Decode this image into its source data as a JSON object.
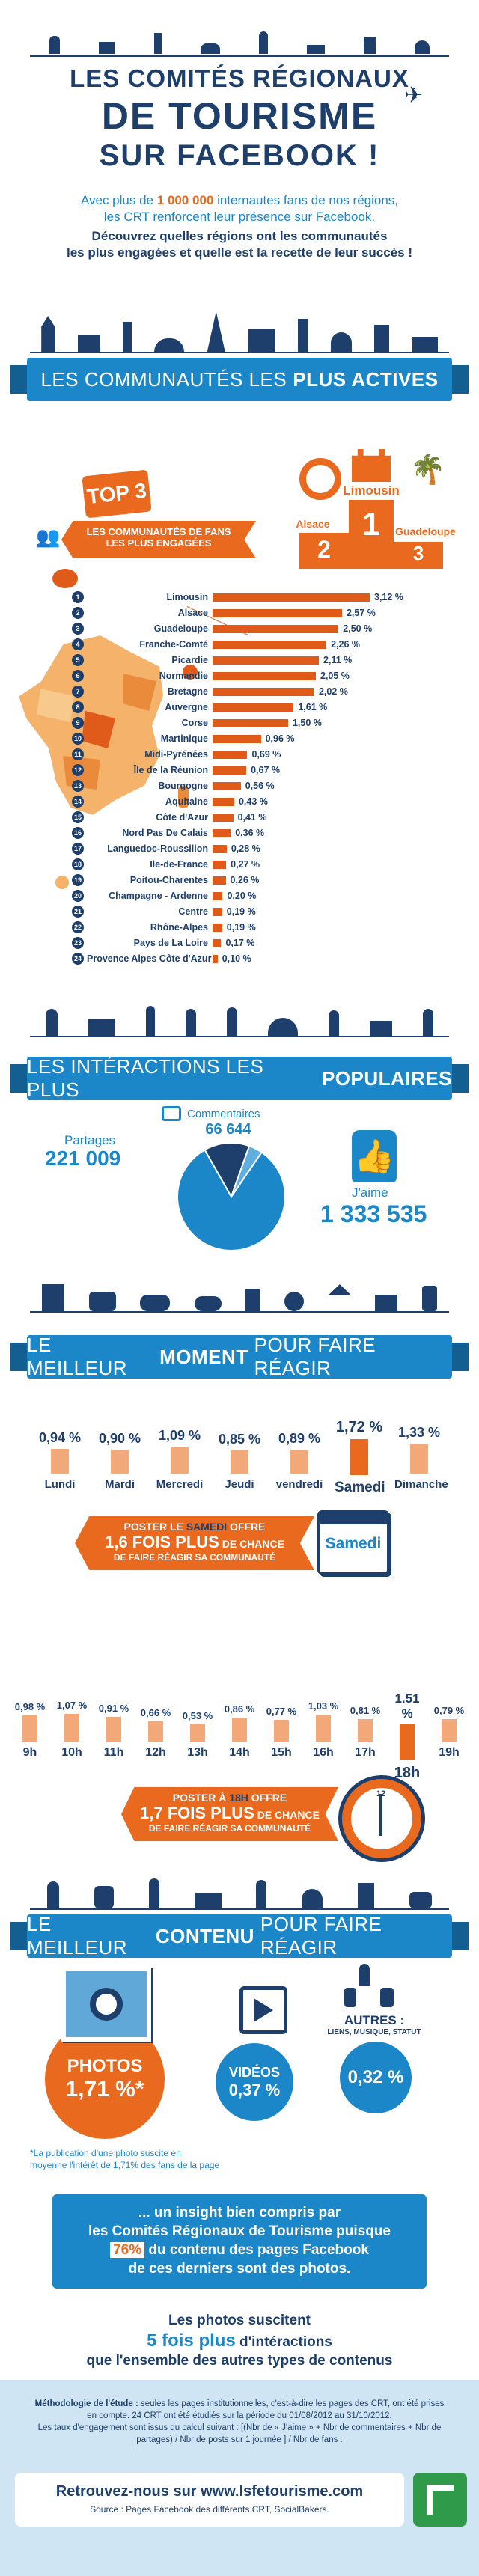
{
  "header": {
    "title_line1": "LES COMITÉS RÉGIONAUX",
    "title_line2": "DE TOURISME",
    "title_line3": "SUR FACEBOOK !",
    "intro_part1": "Avec plus de ",
    "intro_highlight": "1 000 000",
    "intro_part2": " internautes fans de nos régions,",
    "intro_line2": "les CRT renforcent leur présence sur Facebook.",
    "intro_bold1": "Découvrez quelles régions ont les communautés",
    "intro_bold2": "les plus engagées et quelle est la recette de leur succès !"
  },
  "section1": {
    "banner_normal": "LES COMMUNAUTÉS LES",
    "banner_highlight": "PLUS ACTIVES",
    "top3_label": "TOP 3",
    "top3_caption_line1": "LES COMMUNAUTÉS DE FANS",
    "top3_caption_line2": "LES PLUS ENGAGÉES",
    "podium": {
      "first": "Limousin",
      "second": "Alsace",
      "third": "Guadeloupe",
      "first_num": "1",
      "second_num": "2",
      "third_num": "3"
    },
    "ranking": [
      {
        "rank": "1",
        "name": "Limousin",
        "value": "3,12 %",
        "num": 3.12
      },
      {
        "rank": "2",
        "name": "Alsace",
        "value": "2,57 %",
        "num": 2.57
      },
      {
        "rank": "3",
        "name": "Guadeloupe",
        "value": "2,50 %",
        "num": 2.5
      },
      {
        "rank": "4",
        "name": "Franche-Comté",
        "value": "2,26 %",
        "num": 2.26
      },
      {
        "rank": "5",
        "name": "Picardie",
        "value": "2,11 %",
        "num": 2.11
      },
      {
        "rank": "6",
        "name": "Normandie",
        "value": "2,05 %",
        "num": 2.05
      },
      {
        "rank": "7",
        "name": "Bretagne",
        "value": "2,02 %",
        "num": 2.02
      },
      {
        "rank": "8",
        "name": "Auvergne",
        "value": "1,61 %",
        "num": 1.61
      },
      {
        "rank": "9",
        "name": "Corse",
        "value": "1,50 %",
        "num": 1.5
      },
      {
        "rank": "10",
        "name": "Martinique",
        "value": "0,96 %",
        "num": 0.96
      },
      {
        "rank": "11",
        "name": "Midi-Pyrénées",
        "value": "0,69 %",
        "num": 0.69
      },
      {
        "rank": "12",
        "name": "Île de la Réunion",
        "value": "0,67 %",
        "num": 0.67
      },
      {
        "rank": "13",
        "name": "Bourgogne",
        "value": "0,56 %",
        "num": 0.56
      },
      {
        "rank": "14",
        "name": "Aquitaine",
        "value": "0,43 %",
        "num": 0.43
      },
      {
        "rank": "15",
        "name": "Côte d'Azur",
        "value": "0,41 %",
        "num": 0.41
      },
      {
        "rank": "16",
        "name": "Nord Pas De Calais",
        "value": "0,36 %",
        "num": 0.36
      },
      {
        "rank": "17",
        "name": "Languedoc-Roussillon",
        "value": "0,28 %",
        "num": 0.28
      },
      {
        "rank": "18",
        "name": "Ile-de-France",
        "value": "0,27 %",
        "num": 0.27
      },
      {
        "rank": "19",
        "name": "Poitou-Charentes",
        "value": "0,26 %",
        "num": 0.26
      },
      {
        "rank": "20",
        "name": "Champagne - Ardenne",
        "value": "0,20 %",
        "num": 0.2
      },
      {
        "rank": "21",
        "name": "Centre",
        "value": "0,19 %",
        "num": 0.19
      },
      {
        "rank": "22",
        "name": "Rhône-Alpes",
        "value": "0,19 %",
        "num": 0.19
      },
      {
        "rank": "23",
        "name": "Pays de La Loire",
        "value": "0,17 %",
        "num": 0.17
      },
      {
        "rank": "24",
        "name": "Provence Alpes Côte d'Azur",
        "value": "0,10 %",
        "num": 0.1
      }
    ]
  },
  "section2": {
    "banner_normal": "LES INTÉRACTIONS LES PLUS",
    "banner_highlight": "POPULAIRES",
    "shares_label": "Partages",
    "shares_value": "221 009",
    "comments_label": "Commentaires",
    "comments_value": "66 644",
    "likes_label": "J'aime",
    "likes_value": "1 333 535",
    "chart_data": {
      "type": "pie",
      "categories": [
        "J'aime",
        "Partages",
        "Commentaires"
      ],
      "values": [
        1333535,
        221009,
        66644
      ],
      "colors": [
        "#1b87c9",
        "#1e3f6b",
        "#5fb0e0"
      ]
    }
  },
  "section3": {
    "banner_normal": "LE MEILLEUR",
    "banner_highlight": "MOMENT",
    "banner_end": "POUR FAIRE RÉAGIR",
    "days": [
      {
        "label": "Lundi",
        "value": "0,94 %",
        "num": 0.94
      },
      {
        "label": "Mardi",
        "value": "0,90 %",
        "num": 0.9
      },
      {
        "label": "Mercredi",
        "value": "1,09 %",
        "num": 1.09
      },
      {
        "label": "Jeudi",
        "value": "0,85 %",
        "num": 0.85
      },
      {
        "label": "vendredi",
        "value": "0,89 %",
        "num": 0.89
      },
      {
        "label": "Samedi",
        "value": "1,72 %",
        "num": 1.72
      },
      {
        "label": "Dimanche",
        "value": "1,33 %",
        "num": 1.33
      }
    ],
    "saturday_ribbon_line1a": "POSTER LE ",
    "saturday_ribbon_line1b": "SAMEDI",
    "saturday_ribbon_line1c": " OFFRE",
    "saturday_ribbon_line2a": "1,6 FOIS PLUS",
    "saturday_ribbon_line2b": " DE CHANCE",
    "saturday_ribbon_line3": "DE FAIRE RÉAGIR SA COMMUNAUTÉ",
    "calendar_label": "Samedi",
    "hours": [
      {
        "label": "9h",
        "value": "0,98 %",
        "num": 0.98
      },
      {
        "label": "10h",
        "value": "1,07 %",
        "num": 1.07
      },
      {
        "label": "11h",
        "value": "0,91 %",
        "num": 0.91
      },
      {
        "label": "12h",
        "value": "0,66 %",
        "num": 0.66
      },
      {
        "label": "13h",
        "value": "0,53 %",
        "num": 0.53
      },
      {
        "label": "14h",
        "value": "0,86 %",
        "num": 0.86
      },
      {
        "label": "15h",
        "value": "0,77 %",
        "num": 0.77
      },
      {
        "label": "16h",
        "value": "1,03 %",
        "num": 1.03
      },
      {
        "label": "17h",
        "value": "0,81 %",
        "num": 0.81
      },
      {
        "label": "18h",
        "value": "1.51 %",
        "num": 1.51
      },
      {
        "label": "19h",
        "value": "0,79 %",
        "num": 0.79
      }
    ],
    "hour_ribbon_line1a": "POSTER À ",
    "hour_ribbon_line1b": "18H",
    "hour_ribbon_line1c": " OFFRE",
    "hour_ribbon_line2a": "1,7 FOIS PLUS",
    "hour_ribbon_line2b": " DE CHANCE",
    "hour_ribbon_line3": "DE FAIRE RÉAGIR SA COMMUNAUTÉ"
  },
  "section4": {
    "banner_normal": "LE MEILLEUR",
    "banner_highlight": "CONTENU",
    "banner_end": "POUR FAIRE RÉAGIR",
    "photos_label": "PHOTOS",
    "photos_value": "1,71 %",
    "photos_asterisk": "*",
    "videos_label": "VIDÉOS",
    "videos_value": "0,37 %",
    "others_label": "AUTRES :",
    "others_sub": "LIENS, MUSIQUE, STATUT",
    "others_value": "0,32 %",
    "footnote_line1": "*La publication d'une photo suscite en",
    "footnote_line2": "moyenne l'intérêt de 1,71% des fans de la page",
    "insight_line1": "... un insight bien compris par",
    "insight_line2": "les Comités Régionaux de Tourisme puisque",
    "insight_pct": "76%",
    "insight_line3": " du contenu des pages Facebook",
    "insight_line4": "de ces derniers sont des photos.",
    "closing_line1": "Les photos suscitent",
    "closing_line2": "5 fois plus",
    "closing_line2b": " d'intéractions",
    "closing_line3": "que l'ensemble des autres types de contenus"
  },
  "footer": {
    "method_bold": "Méthodologie de l'étude :",
    "method_text1": " seules les pages institutionnelles, c'est-à-dire les pages des CRT, ont été prises",
    "method_text2": "en compte. 24 CRT ont été étudiés sur la période du 01/08/2012 au 31/10/2012.",
    "method_text3": "Les taux d'engagement sont issus du calcul suivant : [(Nbr de « J'aime » + Nbr de commentaires + Nbr de",
    "method_text4": "partages) / Nbr de posts sur 1 journée ] / Nbr de fans .",
    "cta": "Retrouvez-nous sur www.lsfetourisme.com",
    "source": "Source : Pages Facebook des différents CRT, SocialBakers."
  }
}
